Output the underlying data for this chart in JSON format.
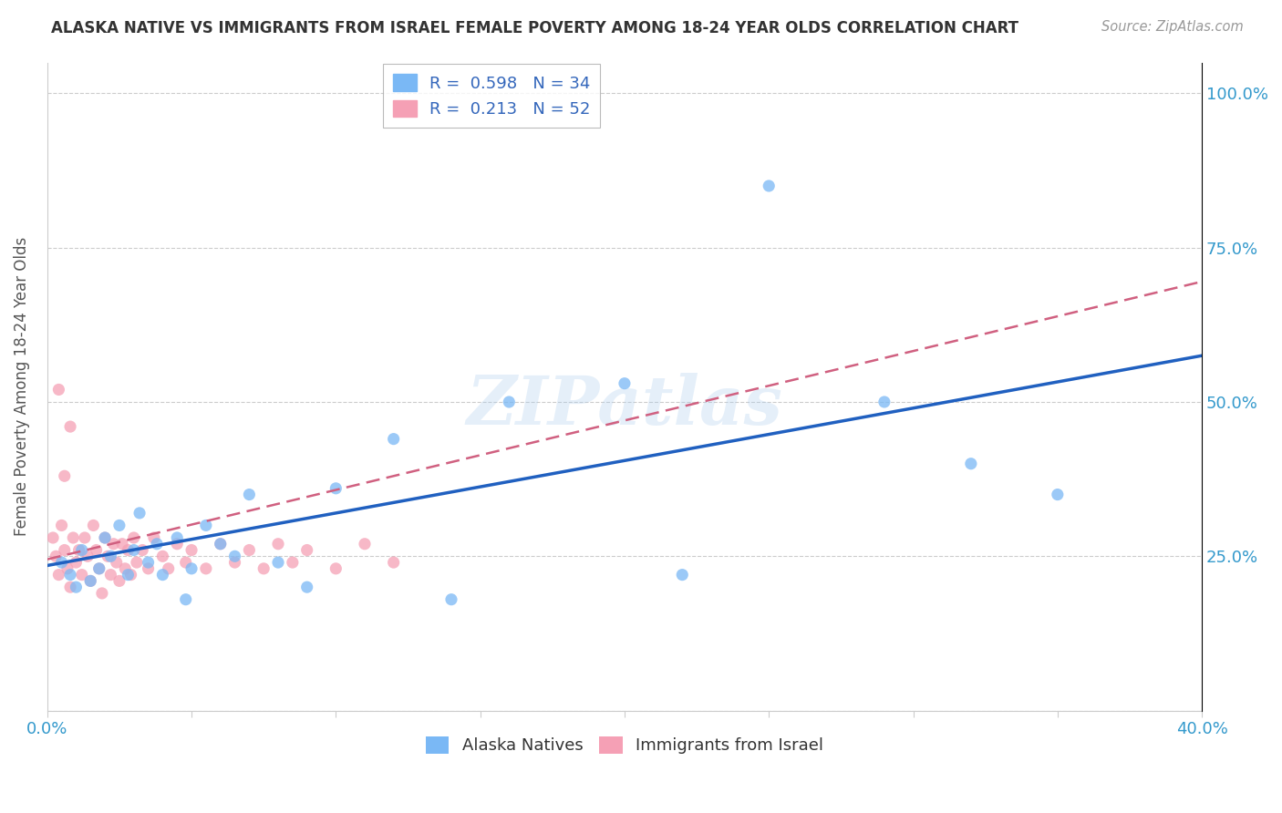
{
  "title": "ALASKA NATIVE VS IMMIGRANTS FROM ISRAEL FEMALE POVERTY AMONG 18-24 YEAR OLDS CORRELATION CHART",
  "source": "Source: ZipAtlas.com",
  "ylabel": "Female Poverty Among 18-24 Year Olds",
  "xlim": [
    0.0,
    0.4
  ],
  "ylim": [
    0.0,
    1.05
  ],
  "xtick_vals": [
    0.0,
    0.05,
    0.1,
    0.15,
    0.2,
    0.25,
    0.3,
    0.35,
    0.4
  ],
  "xtick_labels": [
    "0.0%",
    "",
    "",
    "",
    "",
    "",
    "",
    "",
    "40.0%"
  ],
  "ytick_vals": [
    0.0,
    0.25,
    0.5,
    0.75,
    1.0
  ],
  "ytick_labels": [
    "",
    "25.0%",
    "50.0%",
    "75.0%",
    "100.0%"
  ],
  "alaska_color": "#7ab8f5",
  "israel_color": "#f5a0b5",
  "alaska_line_color": "#2060c0",
  "israel_line_color": "#d06080",
  "alaska_R": 0.598,
  "alaska_N": 34,
  "israel_R": 0.213,
  "israel_N": 52,
  "alaska_line_x0": 0.0,
  "alaska_line_y0": 0.235,
  "alaska_line_x1": 0.4,
  "alaska_line_y1": 0.575,
  "israel_line_x0": 0.0,
  "israel_line_y0": 0.245,
  "israel_line_x1": 0.4,
  "israel_line_y1": 0.695,
  "ak_x": [
    0.005,
    0.008,
    0.01,
    0.012,
    0.015,
    0.018,
    0.02,
    0.022,
    0.025,
    0.028,
    0.03,
    0.032,
    0.035,
    0.038,
    0.04,
    0.045,
    0.048,
    0.05,
    0.055,
    0.06,
    0.065,
    0.07,
    0.08,
    0.09,
    0.1,
    0.12,
    0.14,
    0.16,
    0.2,
    0.22,
    0.25,
    0.29,
    0.32,
    0.35
  ],
  "ak_y": [
    0.24,
    0.22,
    0.2,
    0.26,
    0.21,
    0.23,
    0.28,
    0.25,
    0.3,
    0.22,
    0.26,
    0.32,
    0.24,
    0.27,
    0.22,
    0.28,
    0.18,
    0.23,
    0.3,
    0.27,
    0.25,
    0.35,
    0.24,
    0.2,
    0.36,
    0.44,
    0.18,
    0.5,
    0.53,
    0.22,
    0.85,
    0.5,
    0.4,
    0.35
  ],
  "isr_x": [
    0.002,
    0.003,
    0.004,
    0.005,
    0.006,
    0.007,
    0.008,
    0.009,
    0.01,
    0.011,
    0.012,
    0.013,
    0.014,
    0.015,
    0.016,
    0.017,
    0.018,
    0.019,
    0.02,
    0.021,
    0.022,
    0.023,
    0.024,
    0.025,
    0.026,
    0.027,
    0.028,
    0.029,
    0.03,
    0.031,
    0.033,
    0.035,
    0.037,
    0.04,
    0.042,
    0.045,
    0.048,
    0.05,
    0.055,
    0.06,
    0.065,
    0.07,
    0.075,
    0.08,
    0.085,
    0.09,
    0.1,
    0.11,
    0.12,
    0.004,
    0.006,
    0.008
  ],
  "isr_y": [
    0.28,
    0.25,
    0.22,
    0.3,
    0.26,
    0.23,
    0.2,
    0.28,
    0.24,
    0.26,
    0.22,
    0.28,
    0.25,
    0.21,
    0.3,
    0.26,
    0.23,
    0.19,
    0.28,
    0.25,
    0.22,
    0.27,
    0.24,
    0.21,
    0.27,
    0.23,
    0.26,
    0.22,
    0.28,
    0.24,
    0.26,
    0.23,
    0.28,
    0.25,
    0.23,
    0.27,
    0.24,
    0.26,
    0.23,
    0.27,
    0.24,
    0.26,
    0.23,
    0.27,
    0.24,
    0.26,
    0.23,
    0.27,
    0.24,
    0.52,
    0.38,
    0.46
  ],
  "watermark": "ZIPatlas"
}
